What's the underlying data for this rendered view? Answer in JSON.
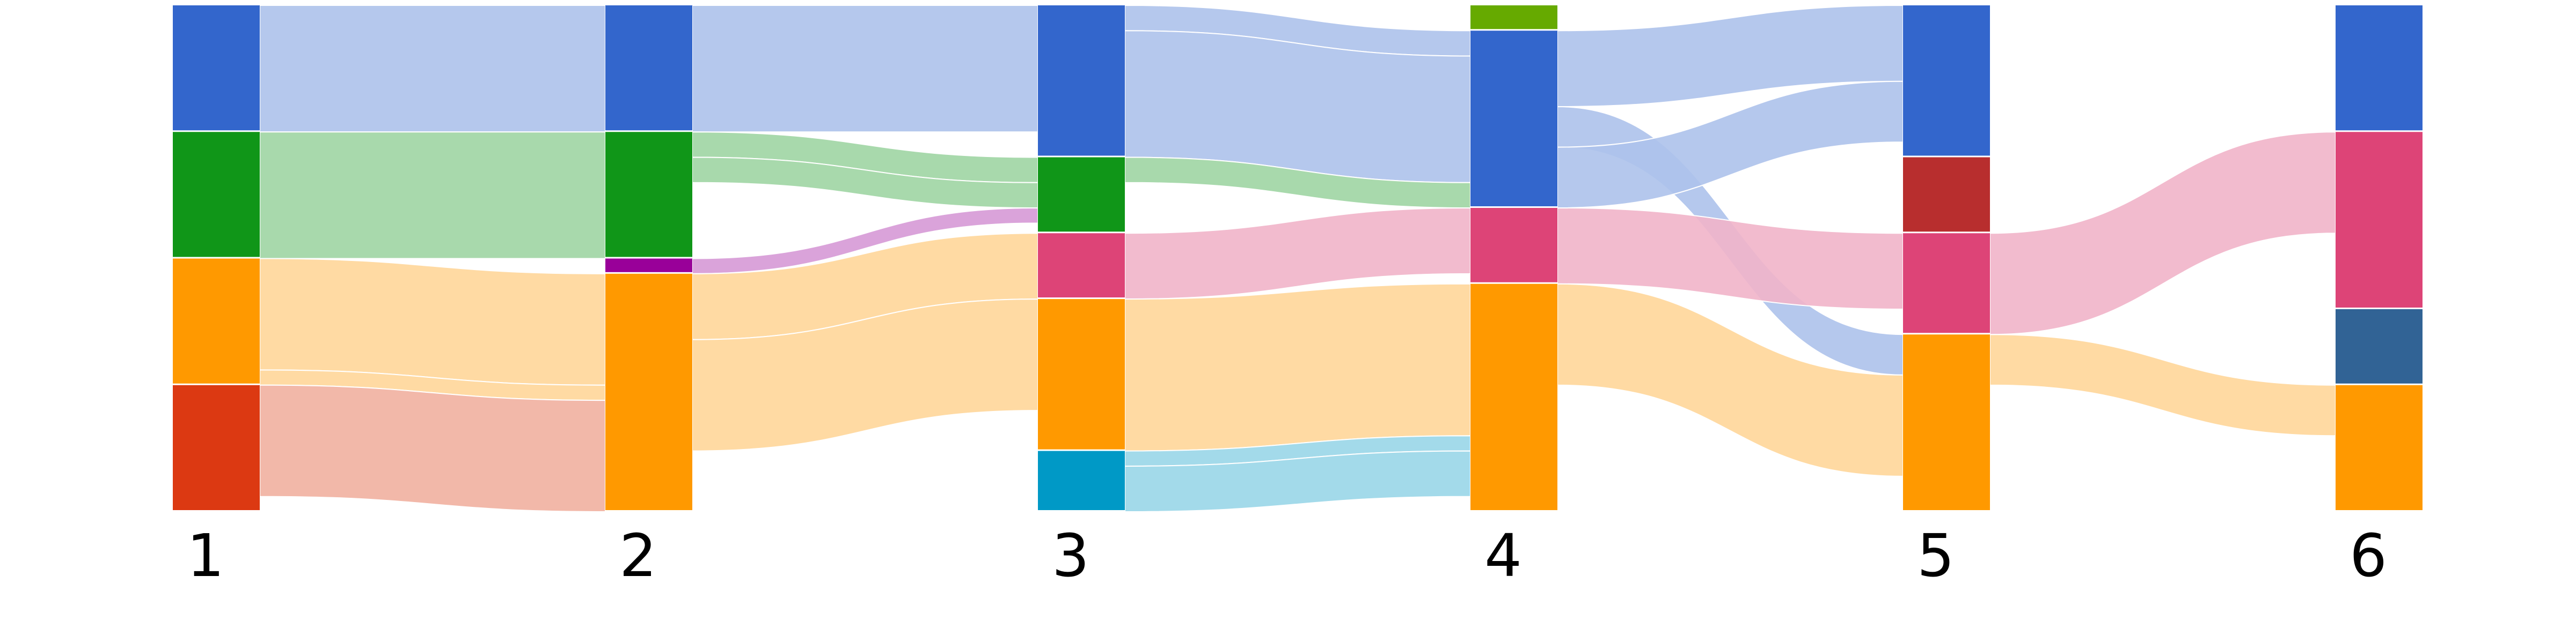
{
  "chart_data": {
    "type": "alluvial",
    "stages": [
      "1",
      "2",
      "3",
      "4",
      "5",
      "6"
    ],
    "colors": {
      "blue": "#3366cc",
      "green": "#109618",
      "orange": "#ff9900",
      "red": "#dc3912",
      "purple": "#990099",
      "teal": "#0099c6",
      "pink": "#dd4477",
      "lightgreen": "#66aa00",
      "darkred": "#b82e2e",
      "slate": "#316395"
    },
    "stacks": [
      [
        [
          "blue",
          25
        ],
        [
          "green",
          25
        ],
        [
          "orange",
          25
        ],
        [
          "red",
          25
        ]
      ],
      [
        [
          "blue",
          25
        ],
        [
          "green",
          25
        ],
        [
          "purple",
          3
        ],
        [
          "orange",
          47
        ]
      ],
      [
        [
          "blue",
          30
        ],
        [
          "green",
          15
        ],
        [
          "pink",
          13
        ],
        [
          "orange",
          30
        ],
        [
          "teal",
          12
        ]
      ],
      [
        [
          "lightgreen",
          5
        ],
        [
          "blue",
          35
        ],
        [
          "pink",
          15
        ],
        [
          "orange",
          45
        ]
      ],
      [
        [
          "blue",
          30
        ],
        [
          "darkred",
          15
        ],
        [
          "pink",
          20
        ],
        [
          "orange",
          35
        ]
      ],
      [
        [
          "blue",
          25
        ],
        [
          "pink",
          35
        ],
        [
          "slate",
          15
        ],
        [
          "orange",
          25
        ]
      ]
    ],
    "flows": [
      [
        0,
        "blue",
        "blue",
        25
      ],
      [
        0,
        "green",
        "green",
        25
      ],
      [
        0,
        "orange",
        "orange",
        22
      ],
      [
        0,
        "orange",
        "orange",
        3
      ],
      [
        0,
        "red",
        "orange",
        22
      ],
      [
        1,
        "blue",
        "blue",
        25
      ],
      [
        1,
        "green",
        "green",
        5
      ],
      [
        1,
        "green",
        "green",
        15
      ],
      [
        1,
        "green",
        "green",
        5
      ],
      [
        1,
        "purple",
        "green",
        3
      ],
      [
        1,
        "orange",
        "pink",
        13
      ],
      [
        1,
        "orange",
        "orange",
        22
      ],
      [
        1,
        "orange",
        "orange",
        12
      ],
      [
        2,
        "blue",
        "blue",
        5
      ],
      [
        2,
        "blue",
        "blue",
        25
      ],
      [
        2,
        "green",
        "green",
        10
      ],
      [
        2,
        "green",
        "blue",
        5
      ],
      [
        2,
        "pink",
        "pink",
        13
      ],
      [
        2,
        "orange",
        "orange",
        30
      ],
      [
        2,
        "teal",
        "orange",
        3
      ],
      [
        2,
        "teal",
        "orange",
        9
      ],
      [
        3,
        "lightgreen",
        "lightgreen",
        5
      ],
      [
        3,
        "blue",
        "blue",
        15
      ],
      [
        3,
        "blue",
        "orange",
        8
      ],
      [
        3,
        "blue",
        "blue",
        12
      ],
      [
        3,
        "pink",
        "pink",
        15
      ],
      [
        3,
        "orange",
        "orange",
        20
      ],
      [
        3,
        "orange",
        "orange",
        25
      ],
      [
        4,
        "blue",
        "blue",
        30
      ],
      [
        4,
        "darkred",
        "darkred",
        15
      ],
      [
        4,
        "pink",
        "pink",
        20
      ],
      [
        4,
        "orange",
        "orange",
        10
      ],
      [
        4,
        "orange",
        "orange",
        25
      ]
    ]
  }
}
